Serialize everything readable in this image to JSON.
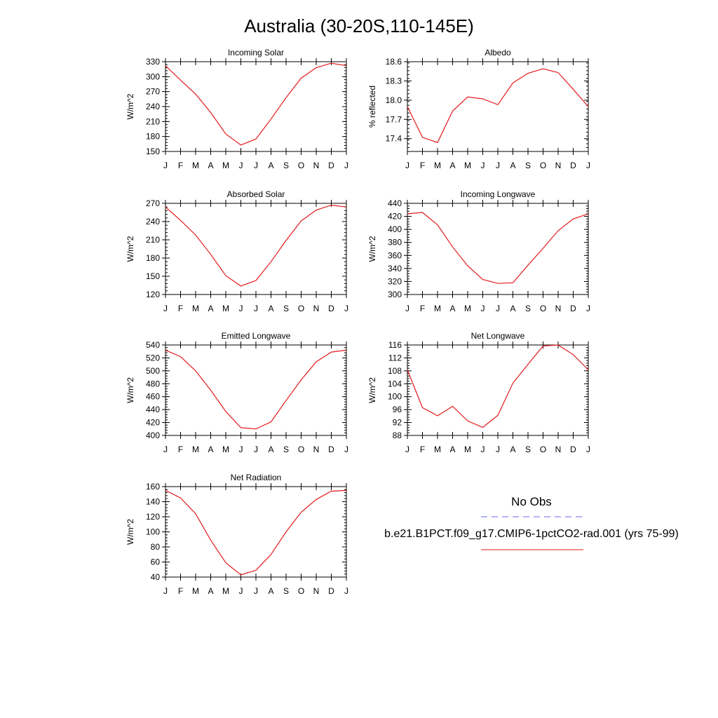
{
  "title": "Australia (30-20S,110-145E)",
  "legend": {
    "obs_label": "No Obs",
    "obs_color": "#6a6af0",
    "model_label": "b.e21.B1PCT.f09_g17.CMIP6-1pctCO2-rad.001 (yrs 75-99)",
    "model_color": "#e31a1c"
  },
  "chart_data": [
    {
      "type": "line",
      "title": "Incoming Solar",
      "ylabel": "W/m^2",
      "categories": [
        "J",
        "F",
        "M",
        "A",
        "M",
        "J",
        "J",
        "A",
        "S",
        "O",
        "N",
        "D",
        "J"
      ],
      "ylim": [
        150,
        330
      ],
      "yticks": [
        150,
        180,
        210,
        240,
        270,
        300,
        330
      ],
      "ytick_labels": [
        "150",
        "180",
        "210",
        "240",
        "270",
        "300",
        "330"
      ],
      "series": [
        {
          "values": [
            322,
            293,
            265,
            228,
            185,
            163,
            175,
            215,
            258,
            297,
            318,
            327,
            322
          ]
        }
      ]
    },
    {
      "type": "line",
      "title": "Albedo",
      "ylabel": "% reflected",
      "categories": [
        "J",
        "F",
        "M",
        "A",
        "M",
        "J",
        "J",
        "A",
        "S",
        "O",
        "N",
        "D",
        "J"
      ],
      "ylim": [
        17.2,
        18.6
      ],
      "yticks": [
        17.4,
        17.7,
        18.0,
        18.3,
        18.6
      ],
      "ytick_labels": [
        "17.4",
        "17.7",
        "18.0",
        "18.3",
        "18.6"
      ],
      "series": [
        {
          "values": [
            17.9,
            17.42,
            17.34,
            17.83,
            18.05,
            18.02,
            17.93,
            18.27,
            18.42,
            18.49,
            18.43,
            18.17,
            17.9
          ]
        }
      ]
    },
    {
      "type": "line",
      "title": "Absorbed Solar",
      "ylabel": "W/m^2",
      "categories": [
        "J",
        "F",
        "M",
        "A",
        "M",
        "J",
        "J",
        "A",
        "S",
        "O",
        "N",
        "D",
        "J"
      ],
      "ylim": [
        120,
        270
      ],
      "yticks": [
        120,
        150,
        180,
        210,
        240,
        270
      ],
      "ytick_labels": [
        "120",
        "150",
        "180",
        "210",
        "240",
        "270"
      ],
      "series": [
        {
          "values": [
            264,
            242,
            218,
            186,
            151,
            134,
            143,
            174,
            209,
            241,
            259,
            267,
            264
          ]
        }
      ]
    },
    {
      "type": "line",
      "title": "Incoming Longwave",
      "ylabel": "W/m^2",
      "categories": [
        "J",
        "F",
        "M",
        "A",
        "M",
        "J",
        "J",
        "A",
        "S",
        "O",
        "N",
        "D",
        "J"
      ],
      "ylim": [
        300,
        440
      ],
      "yticks": [
        300,
        320,
        340,
        360,
        380,
        400,
        420,
        440
      ],
      "ytick_labels": [
        "300",
        "320",
        "340",
        "360",
        "380",
        "400",
        "420",
        "440"
      ],
      "series": [
        {
          "values": [
            424,
            426,
            407,
            373,
            344,
            323,
            317,
            318,
            345,
            371,
            398,
            416,
            424
          ]
        }
      ]
    },
    {
      "type": "line",
      "title": "Emitted Longwave",
      "ylabel": "W/m^2",
      "categories": [
        "J",
        "F",
        "M",
        "A",
        "M",
        "J",
        "J",
        "A",
        "S",
        "O",
        "N",
        "D",
        "J"
      ],
      "ylim": [
        400,
        540
      ],
      "yticks": [
        400,
        420,
        440,
        460,
        480,
        500,
        520,
        540
      ],
      "ytick_labels": [
        "400",
        "420",
        "440",
        "460",
        "480",
        "500",
        "520",
        "540"
      ],
      "series": [
        {
          "values": [
            532,
            522,
            500,
            470,
            437,
            412,
            410,
            421,
            454,
            486,
            514,
            529,
            532
          ]
        }
      ]
    },
    {
      "type": "line",
      "title": "Net Longwave",
      "ylabel": "W/m^2",
      "categories": [
        "J",
        "F",
        "M",
        "A",
        "M",
        "J",
        "J",
        "A",
        "S",
        "O",
        "N",
        "D",
        "J"
      ],
      "ylim": [
        88,
        116
      ],
      "yticks": [
        88,
        92,
        96,
        100,
        104,
        108,
        112,
        116
      ],
      "ytick_labels": [
        "88",
        "92",
        "96",
        "100",
        "104",
        "108",
        "112",
        "116"
      ],
      "series": [
        {
          "values": [
            108.3,
            96.6,
            94.1,
            97.0,
            92.5,
            90.5,
            94.2,
            104.2,
            110.0,
            115.7,
            116.0,
            113.0,
            108.3
          ]
        }
      ]
    },
    {
      "type": "line",
      "title": "Net Radiation",
      "ylabel": "W/m^2",
      "categories": [
        "J",
        "F",
        "M",
        "A",
        "M",
        "J",
        "J",
        "A",
        "S",
        "O",
        "N",
        "D",
        "J"
      ],
      "ylim": [
        40,
        160
      ],
      "yticks": [
        40,
        60,
        80,
        100,
        120,
        140,
        160
      ],
      "ytick_labels": [
        "40",
        "60",
        "80",
        "100",
        "120",
        "140",
        "160"
      ],
      "series": [
        {
          "values": [
            155,
            145,
            124,
            89,
            59,
            43,
            49,
            70,
            100,
            126,
            143,
            154,
            155
          ]
        }
      ]
    }
  ]
}
